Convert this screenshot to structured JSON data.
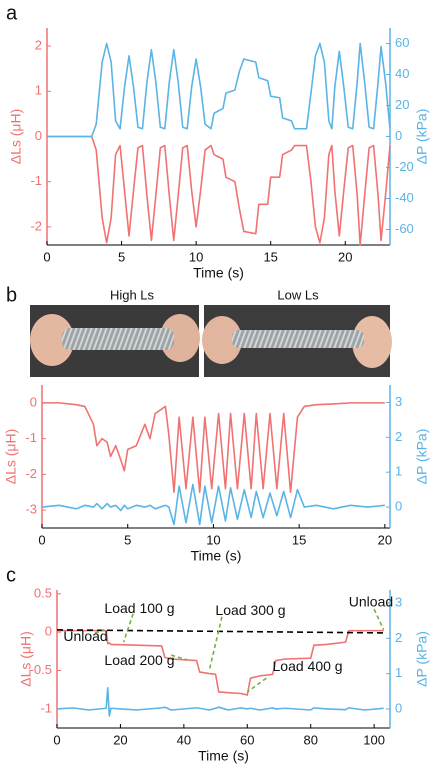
{
  "chart_data": [
    {
      "type": "line",
      "panel_label": "a",
      "xlabel": "Time (s)",
      "ylabel": "ΔLs (μH)",
      "y2label": "ΔP (kPa)",
      "xlim": [
        0,
        23
      ],
      "xticks": [
        0,
        5,
        10,
        15,
        20
      ],
      "ylim": [
        -2.4,
        2.4
      ],
      "yticks": [
        -2,
        -1,
        0,
        1,
        2
      ],
      "y2lim": [
        -70,
        70
      ],
      "y2ticks": [
        -60,
        -40,
        -20,
        0,
        20,
        40,
        60
      ],
      "x": [
        0,
        3,
        3.3,
        3.7,
        4.0,
        4.3,
        4.6,
        4.9,
        5.2,
        5.5,
        5.8,
        6.1,
        6.4,
        6.7,
        7.0,
        7.3,
        7.6,
        7.9,
        8.2,
        8.5,
        8.8,
        9.1,
        9.4,
        9.7,
        10.0,
        10.3,
        10.6,
        11.0,
        11.2,
        11.8,
        12.0,
        12.6,
        12.9,
        13.2,
        14.0,
        14.2,
        14.8,
        15.0,
        15.6,
        15.8,
        16.4,
        16.6,
        17.4,
        17.7,
        18.0,
        18.3,
        18.6,
        18.9,
        19.1,
        19.3,
        19.6,
        19.9,
        20.2,
        20.5,
        20.8,
        21.0,
        21.3,
        21.6,
        21.9,
        22.2,
        22.4,
        22.7,
        23.0
      ],
      "series": [
        {
          "color": "#f07272",
          "values": [
            0,
            0,
            -0.3,
            -1.8,
            -2.35,
            -1.8,
            -0.4,
            -0.2,
            -1.2,
            -2.2,
            -1.2,
            -0.25,
            -0.2,
            -1.3,
            -2.3,
            -1.3,
            -0.25,
            -0.2,
            -1.3,
            -2.3,
            -1.3,
            -0.25,
            -0.2,
            -1.2,
            -2.0,
            -1.2,
            -0.3,
            -0.2,
            -0.4,
            -0.5,
            -0.9,
            -1.0,
            -1.6,
            -2.1,
            -2.15,
            -1.5,
            -1.5,
            -0.9,
            -0.9,
            -0.4,
            -0.3,
            -0.2,
            -0.2,
            -1.0,
            -2.0,
            -2.35,
            -1.8,
            -0.4,
            -0.2,
            -1.2,
            -2.2,
            -1.2,
            -0.25,
            -0.2,
            -1.3,
            -2.4,
            -1.3,
            -0.25,
            -0.2,
            -1.3,
            -2.3,
            -1.3,
            -0.2
          ]
        },
        {
          "color": "#5ab4e6",
          "axis": "y2",
          "values": [
            0,
            0,
            8,
            48,
            60,
            48,
            10,
            5,
            32,
            52,
            32,
            6,
            5,
            35,
            56,
            35,
            6,
            5,
            35,
            56,
            35,
            6,
            5,
            32,
            50,
            32,
            8,
            5,
            15,
            18,
            28,
            30,
            42,
            50,
            48,
            38,
            36,
            26,
            25,
            12,
            10,
            5,
            5,
            28,
            52,
            60,
            48,
            10,
            5,
            32,
            55,
            32,
            6,
            5,
            35,
            60,
            35,
            6,
            5,
            35,
            58,
            35,
            5
          ]
        }
      ]
    },
    {
      "type": "line",
      "panel_label": "b",
      "xlabel": "Time (s)",
      "ylabel": "ΔLs (μH)",
      "y2label": "ΔP (kPa)",
      "xlim": [
        0,
        20.3
      ],
      "xticks": [
        0,
        5,
        10,
        15,
        20
      ],
      "ylim": [
        -3.5,
        0.5
      ],
      "yticks": [
        -3,
        -2,
        -1,
        0
      ],
      "y2lim": [
        -0.6,
        3.5
      ],
      "y2ticks": [
        0,
        1,
        2,
        3
      ],
      "x": [
        0,
        1,
        2,
        2.5,
        3.0,
        3.2,
        3.5,
        3.8,
        4.0,
        4.3,
        4.6,
        4.8,
        5.0,
        5.5,
        6.0,
        6.3,
        6.6,
        7.2,
        7.4,
        7.7,
        8.0,
        8.4,
        8.8,
        9.2,
        9.5,
        9.9,
        10.3,
        10.7,
        11.0,
        11.4,
        11.8,
        12.2,
        12.5,
        12.9,
        13.3,
        13.7,
        14.1,
        14.5,
        14.9,
        15.3,
        16,
        17,
        18,
        19,
        20
      ],
      "series": [
        {
          "color": "#f07272",
          "values": [
            0,
            0,
            -0.05,
            -0.1,
            -0.6,
            -1.2,
            -1.0,
            -1.1,
            -1.5,
            -1.2,
            -1.6,
            -1.9,
            -1.3,
            -1.2,
            -0.6,
            -1.0,
            -0.3,
            -0.1,
            -0.9,
            -2.5,
            -0.4,
            -2.4,
            -0.4,
            -2.5,
            -0.4,
            -2.4,
            -0.3,
            -2.4,
            -0.3,
            -2.4,
            -0.3,
            -2.4,
            -0.3,
            -2.4,
            -0.3,
            -2.4,
            -0.3,
            -2.5,
            -0.4,
            -0.1,
            -0.05,
            -0.03,
            0,
            0,
            0
          ]
        },
        {
          "color": "#5ab4e6",
          "axis": "y2",
          "values": [
            0,
            0.05,
            -0.05,
            0.05,
            0,
            0.1,
            -0.05,
            0.1,
            0,
            0.05,
            -0.1,
            0.05,
            -0.05,
            0.05,
            0,
            0.05,
            -0.05,
            0.05,
            0,
            -0.5,
            0.6,
            -0.45,
            0.65,
            -0.5,
            0.6,
            -0.45,
            0.6,
            -0.4,
            0.55,
            -0.35,
            0.5,
            -0.3,
            0.45,
            -0.3,
            0.4,
            -0.25,
            0.45,
            -0.3,
            0.5,
            0,
            0.05,
            -0.05,
            0.05,
            0,
            0.05
          ]
        }
      ]
    },
    {
      "type": "line",
      "panel_label": "c",
      "xlabel": "Time (s)",
      "ylabel": "ΔLs (μH)",
      "y2label": "ΔP (kPa)",
      "xlim": [
        0,
        105
      ],
      "xticks": [
        0,
        20,
        40,
        60,
        80,
        100
      ],
      "ylim": [
        -1.25,
        0.55
      ],
      "yticks": [
        -1,
        -0.5,
        0,
        0.5
      ],
      "y2lim": [
        -0.54,
        3.37
      ],
      "y2ticks": [
        0,
        1,
        2,
        3
      ],
      "x": [
        0,
        5,
        10,
        15.5,
        16,
        16.5,
        17,
        25,
        33,
        34,
        36,
        44,
        45,
        48,
        50,
        51,
        54,
        58,
        60,
        61,
        64,
        68,
        69,
        72,
        80,
        81,
        85,
        91,
        92,
        97,
        103
      ],
      "series": [
        {
          "color": "#f07272",
          "values": [
            0.02,
            0.02,
            0.02,
            0.02,
            -0.15,
            -0.14,
            -0.16,
            -0.17,
            -0.18,
            -0.33,
            -0.35,
            -0.37,
            -0.52,
            -0.54,
            -0.55,
            -0.78,
            -0.79,
            -0.8,
            -0.82,
            -0.6,
            -0.57,
            -0.55,
            -0.37,
            -0.35,
            -0.34,
            -0.17,
            -0.16,
            -0.13,
            0.02,
            0.02,
            0.02
          ]
        },
        {
          "color": "#5ab4e6",
          "axis": "y2",
          "values": [
            0,
            0.03,
            -0.03,
            0.02,
            0.6,
            -0.2,
            0.02,
            -0.03,
            0.03,
            0.05,
            -0.03,
            0.03,
            0.02,
            -0.03,
            0.02,
            0.05,
            -0.03,
            0.03,
            0,
            0.02,
            -0.03,
            0.03,
            0,
            0.02,
            -0.03,
            0.03,
            0,
            -0.02,
            0.03,
            -0.03,
            0.02
          ]
        }
      ],
      "reference_line": {
        "x": [
          0,
          104
        ],
        "values": [
          0.03,
          -0.01
        ],
        "color": "#000000",
        "style": "dashed"
      },
      "annotations": [
        "Unload",
        "Load 100 g",
        "Load 200 g",
        "Load 300 g",
        "Load 400 g",
        "Unload"
      ]
    }
  ],
  "photos": {
    "labels": [
      "High Ls",
      "Low Ls"
    ]
  }
}
